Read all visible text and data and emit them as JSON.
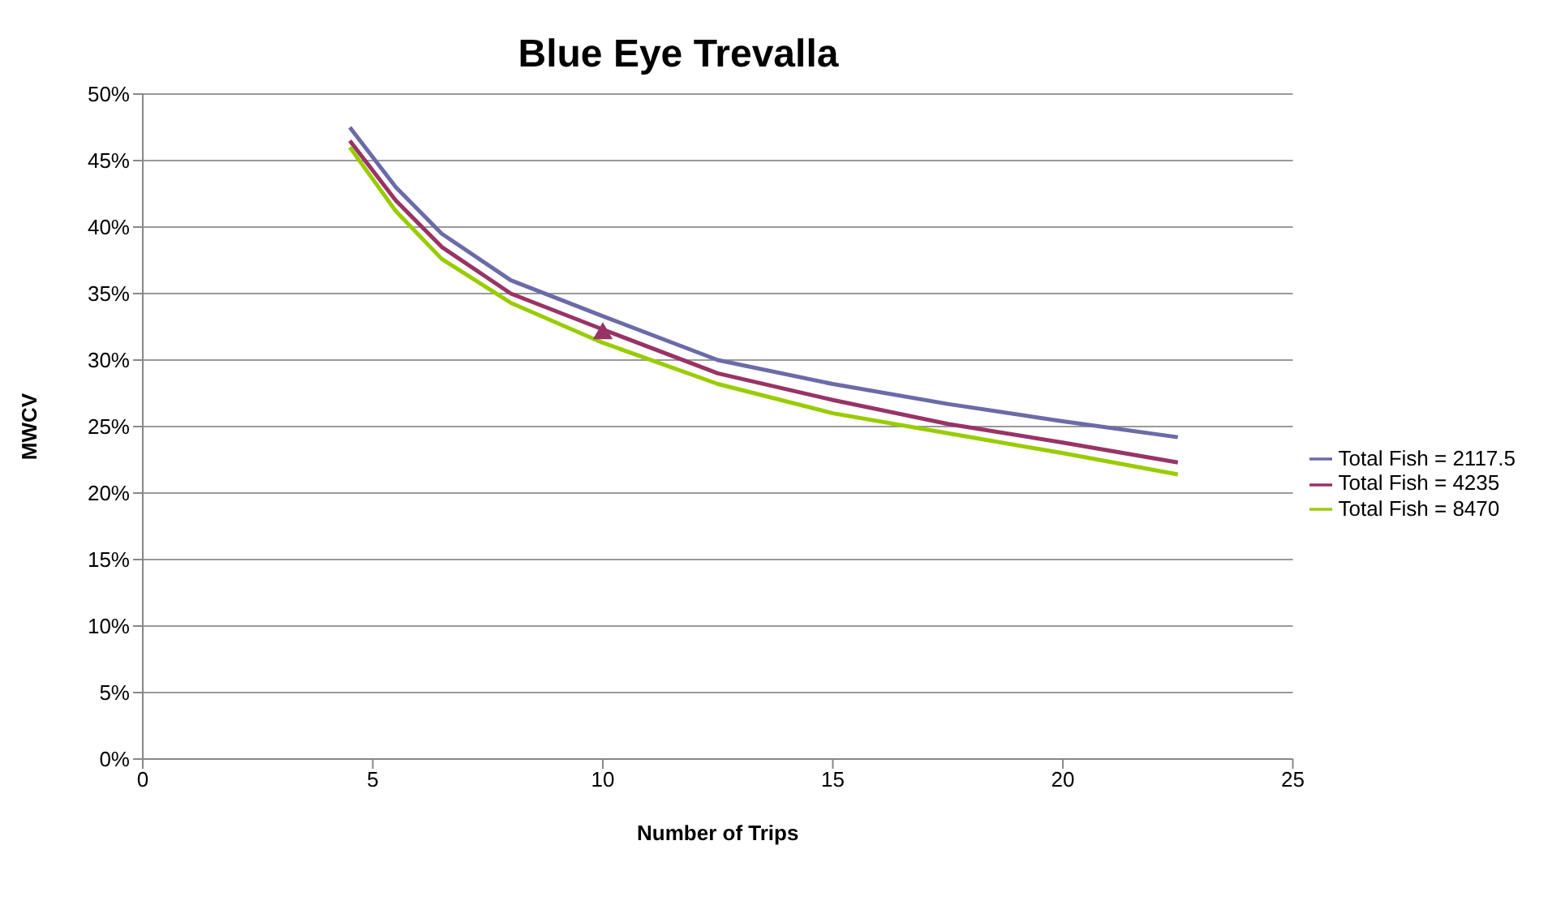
{
  "chart_data": {
    "type": "line",
    "title": "Blue Eye Trevalla",
    "xlabel": "Number of Trips",
    "ylabel": "MWCV",
    "x": [
      4.5,
      5.5,
      6.5,
      8,
      10,
      12.5,
      15,
      17.5,
      20,
      22.5
    ],
    "series": [
      {
        "name": "Total Fish = 2117.5",
        "color": "#6b6ba8",
        "values": [
          47.5,
          43,
          39.5,
          36,
          33.3,
          30,
          28.2,
          26.7,
          25.4,
          24.2
        ],
        "marker": "none"
      },
      {
        "name": "Total Fish = 4235",
        "color": "#993366",
        "values": [
          46.5,
          42,
          38.5,
          35,
          32.3,
          29,
          27,
          25.2,
          23.8,
          22.3
        ],
        "marker": "none"
      },
      {
        "name": "Total Fish = 8470",
        "color": "#99cc00",
        "values": [
          46,
          41.2,
          37.6,
          34.3,
          31.3,
          28.2,
          26,
          24.5,
          23,
          21.4
        ],
        "marker": "none"
      },
      {
        "type": "scatter",
        "color": "#993366",
        "x": [
          10
        ],
        "values": [
          32
        ],
        "marker": "triangle"
      }
    ],
    "xlim": [
      0,
      25
    ],
    "xticks": [
      0,
      5,
      10,
      15,
      20,
      25
    ],
    "ylim": [
      0,
      50
    ],
    "yticks": [
      {
        "value": 0,
        "label": "0%"
      },
      {
        "value": 5,
        "label": "5%"
      },
      {
        "value": 10,
        "label": "10%"
      },
      {
        "value": 15,
        "label": "15%"
      },
      {
        "value": 20,
        "label": "20%"
      },
      {
        "value": 25,
        "label": "25%"
      },
      {
        "value": 30,
        "label": "30%"
      },
      {
        "value": 35,
        "label": "35%"
      },
      {
        "value": 40,
        "label": "40%"
      },
      {
        "value": 45,
        "label": "45%"
      },
      {
        "value": 50,
        "label": "50%"
      }
    ],
    "grid": "y",
    "legend": "right"
  }
}
